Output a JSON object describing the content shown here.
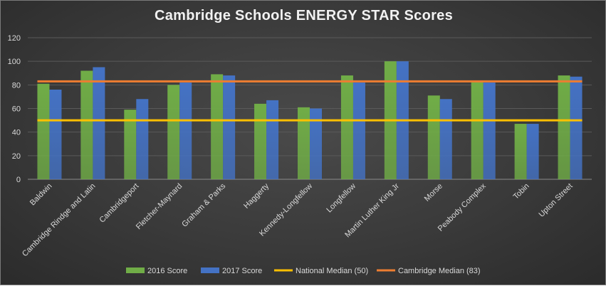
{
  "chart_data": {
    "type": "bar",
    "title": "Cambridge Schools ENERGY STAR Scores",
    "xlabel": "",
    "ylabel": "",
    "ylim": [
      0,
      120
    ],
    "yticks": [
      0,
      20,
      40,
      60,
      80,
      100,
      120
    ],
    "grid": true,
    "legend_position": "bottom",
    "categories": [
      "Baldwin",
      "Cambridge Rindge and Latin",
      "Cambridgeport",
      "Fletcher-Maynard",
      "Graham & Parks",
      "Haggerty",
      "Kennedy-Longfellow",
      "Longfellow",
      "Martin Luther King Jr",
      "Morse",
      "Peabody Complex",
      "Tobin",
      "Upton Street"
    ],
    "series": [
      {
        "name": "2016 Score",
        "color": "#70ad47",
        "values": [
          81,
          92,
          59,
          80,
          89,
          64,
          61,
          88,
          100,
          71,
          83,
          47,
          88
        ]
      },
      {
        "name": "2017 Score",
        "color": "#4472c4",
        "values": [
          76,
          95,
          68,
          82,
          88,
          67,
          60,
          82,
          100,
          68,
          82,
          47,
          87
        ]
      }
    ],
    "reference_lines": [
      {
        "name": "National Median (50)",
        "value": 50,
        "color": "#ffc000"
      },
      {
        "name": "Cambridge Median (83)",
        "value": 83,
        "color": "#ed7d31"
      }
    ]
  }
}
